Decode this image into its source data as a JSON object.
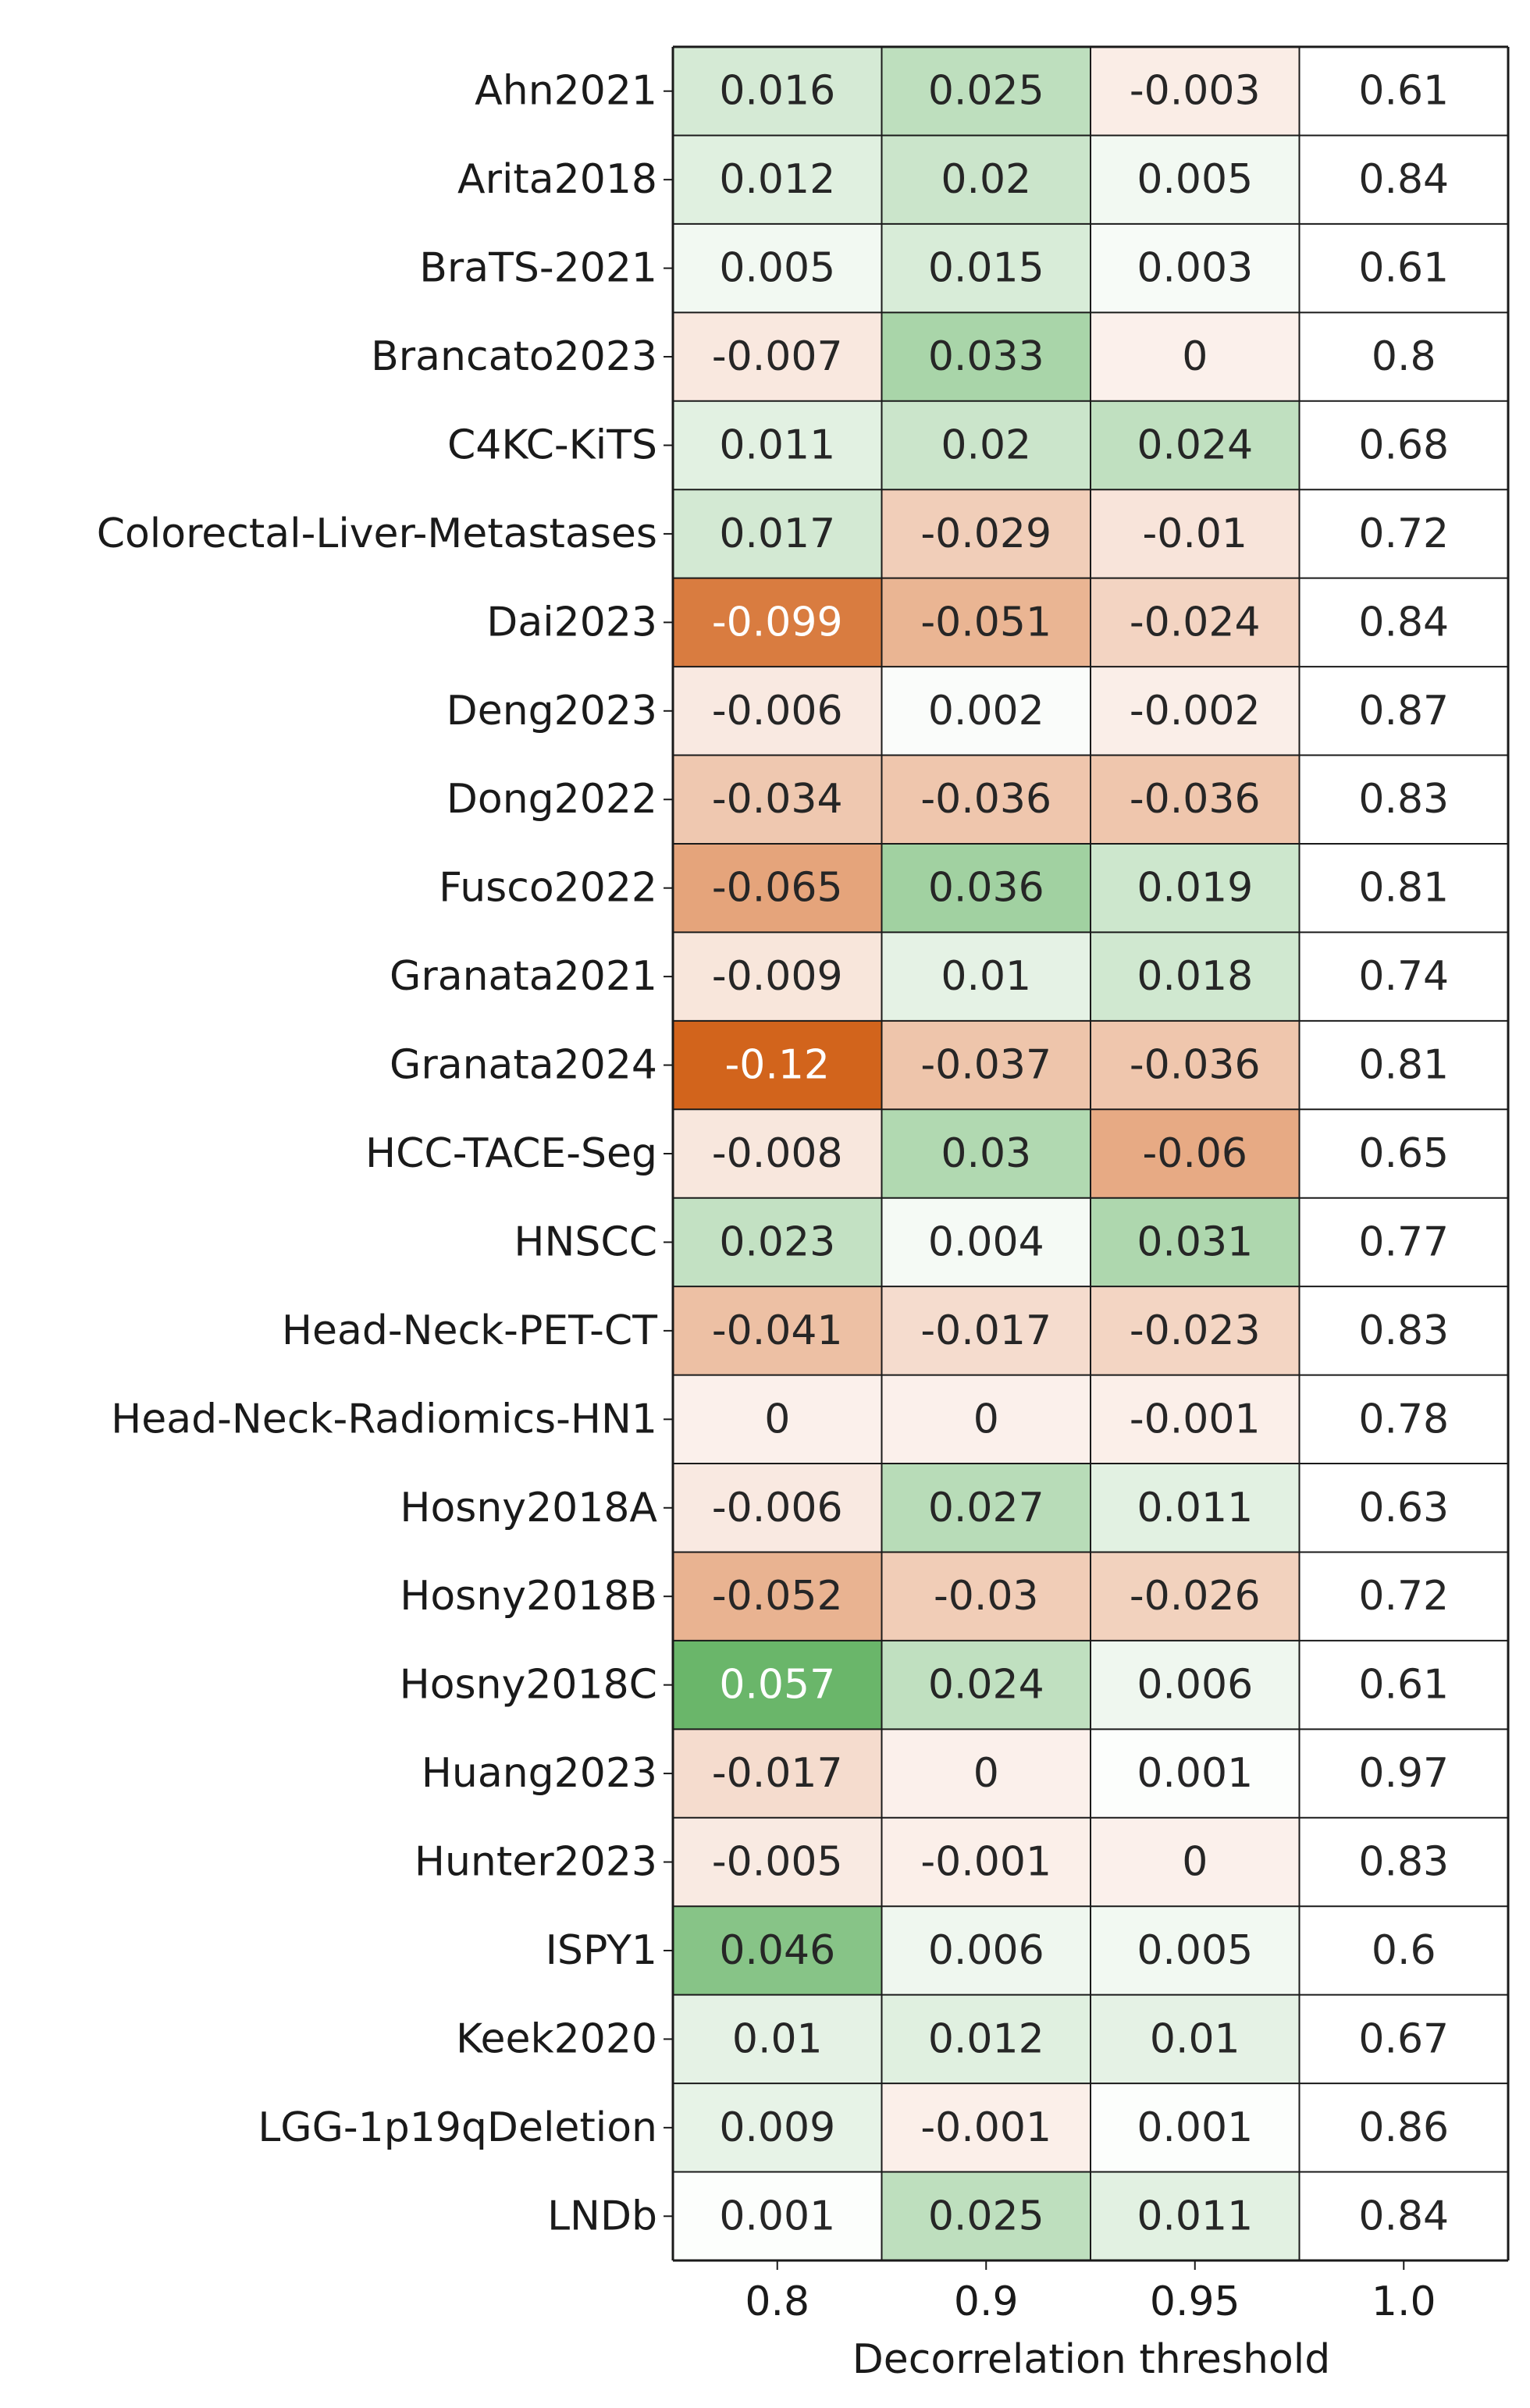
{
  "chart_data": {
    "type": "heatmap",
    "xlabel": "Decorrelation threshold",
    "ylabel": "",
    "x_tick_labels": [
      "0.8",
      "0.9",
      "0.95",
      "1.0"
    ],
    "rows": [
      "Ahn2021",
      "Arita2018",
      "BraTS-2021",
      "Brancato2023",
      "C4KC-KiTS",
      "Colorectal-Liver-Metastases",
      "Dai2023",
      "Deng2023",
      "Dong2022",
      "Fusco2022",
      "Granata2021",
      "Granata2024",
      "HCC-TACE-Seg",
      "HNSCC",
      "Head-Neck-PET-CT",
      "Head-Neck-Radiomics-HN1",
      "Hosny2018A",
      "Hosny2018B",
      "Hosny2018C",
      "Huang2023",
      "Hunter2023",
      "ISPY1",
      "Keek2020",
      "LGG-1p19qDeletion",
      "LNDb"
    ],
    "cell_labels": [
      [
        "0.016",
        "0.025",
        "-0.003",
        "0.61"
      ],
      [
        "0.012",
        "0.02",
        "0.005",
        "0.84"
      ],
      [
        "0.005",
        "0.015",
        "0.003",
        "0.61"
      ],
      [
        "-0.007",
        "0.033",
        "0",
        "0.8"
      ],
      [
        "0.011",
        "0.02",
        "0.024",
        "0.68"
      ],
      [
        "0.017",
        "-0.029",
        "-0.01",
        "0.72"
      ],
      [
        "-0.099",
        "-0.051",
        "-0.024",
        "0.84"
      ],
      [
        "-0.006",
        "0.002",
        "-0.002",
        "0.87"
      ],
      [
        "-0.034",
        "-0.036",
        "-0.036",
        "0.83"
      ],
      [
        "-0.065",
        "0.036",
        "0.019",
        "0.81"
      ],
      [
        "-0.009",
        "0.01",
        "0.018",
        "0.74"
      ],
      [
        "-0.12",
        "-0.037",
        "-0.036",
        "0.81"
      ],
      [
        "-0.008",
        "0.03",
        "-0.06",
        "0.65"
      ],
      [
        "0.023",
        "0.004",
        "0.031",
        "0.77"
      ],
      [
        "-0.041",
        "-0.017",
        "-0.023",
        "0.83"
      ],
      [
        "0",
        "0",
        "-0.001",
        "0.78"
      ],
      [
        "-0.006",
        "0.027",
        "0.011",
        "0.63"
      ],
      [
        "-0.052",
        "-0.03",
        "-0.026",
        "0.72"
      ],
      [
        "0.057",
        "0.024",
        "0.006",
        "0.61"
      ],
      [
        "-0.017",
        "0",
        "0.001",
        "0.97"
      ],
      [
        "-0.005",
        "-0.001",
        "0",
        "0.83"
      ],
      [
        "0.046",
        "0.006",
        "0.005",
        "0.6"
      ],
      [
        "0.01",
        "0.012",
        "0.01",
        "0.67"
      ],
      [
        "0.009",
        "-0.001",
        "0.001",
        "0.86"
      ],
      [
        "0.001",
        "0.025",
        "0.011",
        "0.84"
      ]
    ],
    "color_scale": {
      "negative_max_color": "#d2641c",
      "positive_max_color": "#62b262",
      "zero_color": "#fbf0eb",
      "baseline_column_color": "#ffffff",
      "text_dark": "#262626",
      "text_light": "#ffffff",
      "border_color": "#1a1a1a"
    },
    "grid": true,
    "legend": "none"
  }
}
